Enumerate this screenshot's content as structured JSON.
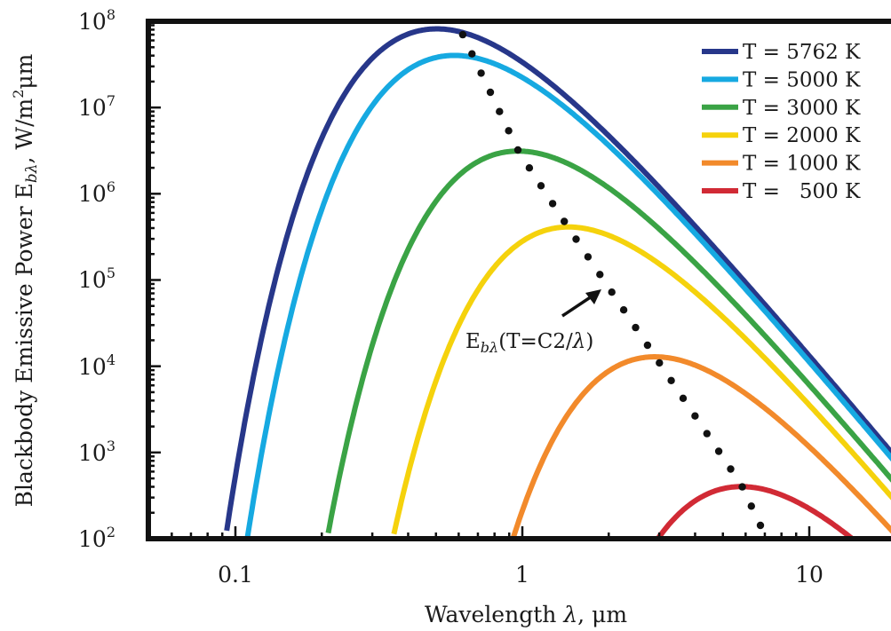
{
  "chart_data": {
    "type": "line",
    "x_scale": "log",
    "y_scale": "log",
    "xlabel_prefix": "Wavelength ",
    "xlabel_var": "λ",
    "xlabel_suffix": ", μm",
    "ylabel_prefix": "Blackbody Emissive Power E",
    "ylabel_sub": "bλ",
    "ylabel_unit": ", W/m",
    "ylabel_unit_sup": "2",
    "ylabel_unit_end": "μm",
    "xlim": [
      0.05,
      20
    ],
    "ylim": [
      100,
      100000000
    ],
    "x_ticks": [
      {
        "value": 0.1,
        "label": "0.1"
      },
      {
        "value": 1,
        "label": "1"
      },
      {
        "value": 10,
        "label": "10"
      }
    ],
    "y_ticks": [
      {
        "value": 100,
        "base": "10",
        "exp": "2"
      },
      {
        "value": 1000,
        "base": "10",
        "exp": "3"
      },
      {
        "value": 10000,
        "base": "10",
        "exp": "4"
      },
      {
        "value": 100000,
        "base": "10",
        "exp": "5"
      },
      {
        "value": 1000000,
        "base": "10",
        "exp": "6"
      },
      {
        "value": 10000000,
        "base": "10",
        "exp": "7"
      },
      {
        "value": 100000000,
        "base": "10",
        "exp": "8"
      }
    ],
    "grid": false,
    "legend_position": "top-right",
    "series": [
      {
        "name": "T = 5762 K",
        "temperature_K": 5762,
        "color": "#27378a",
        "peak_wavelength_um": 0.5,
        "peak_value": 80000000
      },
      {
        "name": "T = 5000 K",
        "temperature_K": 5000,
        "color": "#16a9e1",
        "peak_wavelength_um": 0.58,
        "peak_value": 37000000
      },
      {
        "name": "T = 3000 K",
        "temperature_K": 3000,
        "color": "#3aa345",
        "peak_wavelength_um": 0.97,
        "peak_value": 3100000
      },
      {
        "name": "T = 2000 K",
        "temperature_K": 2000,
        "color": "#f5d20c",
        "peak_wavelength_um": 1.45,
        "peak_value": 400000
      },
      {
        "name": "T = 1000 K",
        "temperature_K": 1000,
        "color": "#f28a2b",
        "peak_wavelength_um": 2.9,
        "peak_value": 13000
      },
      {
        "name": "T =   500 K",
        "temperature_K": 500,
        "color": "#d12a35",
        "peak_wavelength_um": 5.8,
        "peak_value": 420
      }
    ],
    "peak_locus": {
      "style": "dotted",
      "color": "#111111",
      "x": [
        0.62,
        0.97,
        1.45,
        2.9,
        5.8,
        7.1
      ],
      "y": [
        70000000,
        3100000,
        400000,
        13000,
        420,
        100
      ]
    },
    "annotation": {
      "text_prefix": "E",
      "text_sub": "bλ",
      "text_suffix": "(T=C2/",
      "text_var": "λ",
      "text_end": ")",
      "arrow": true
    }
  }
}
